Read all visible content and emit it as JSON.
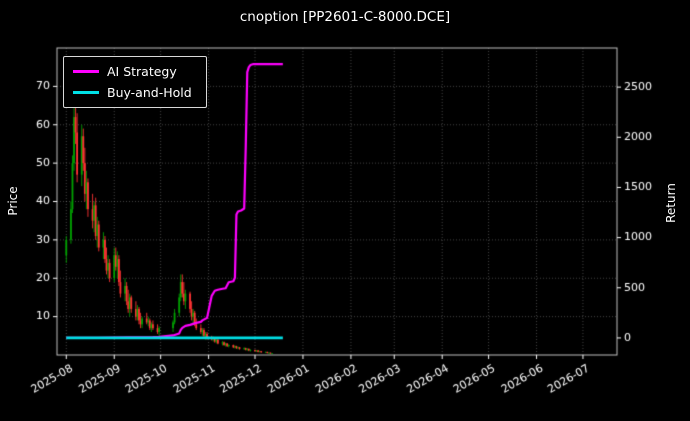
{
  "chart_data": {
    "type": "candlestick+line",
    "title": "cnoption [PP2601-C-8000.DCE]",
    "ylabel_left": "Price",
    "ylabel_right": "Return",
    "legend": [
      {
        "label": "AI Strategy",
        "color": "#ff00ff"
      },
      {
        "label": "Buy-and-Hold",
        "color": "#00e0e6"
      }
    ],
    "colors": {
      "background": "#000000",
      "text": "#ffffff",
      "grid": "rgba(255,255,255,0.35)",
      "spine": "#c0c0c0",
      "candle_up": "#00a000",
      "candle_down": "#ff3333",
      "ai_strategy": "#ff00ff",
      "buy_and_hold": "#00e0e6"
    },
    "x_ticks": [
      {
        "day": 0,
        "label": "2025-08"
      },
      {
        "day": 31,
        "label": "2025-09"
      },
      {
        "day": 61,
        "label": "2025-10"
      },
      {
        "day": 92,
        "label": "2025-11"
      },
      {
        "day": 122,
        "label": "2025-12"
      },
      {
        "day": 153,
        "label": "2026-01"
      },
      {
        "day": 184,
        "label": "2026-02"
      },
      {
        "day": 212,
        "label": "2026-03"
      },
      {
        "day": 243,
        "label": "2026-04"
      },
      {
        "day": 273,
        "label": "2026-05"
      },
      {
        "day": 304,
        "label": "2026-06"
      },
      {
        "day": 334,
        "label": "2026-07"
      }
    ],
    "y_ticks_left": [
      10,
      20,
      30,
      40,
      50,
      60,
      70
    ],
    "y_ticks_right": [
      0,
      500,
      1000,
      1500,
      2000,
      2500
    ],
    "xlim_days": [
      -6,
      356
    ],
    "ylim_price": [
      0,
      80
    ],
    "ylim_return": [
      -170,
      2890
    ],
    "candles": [
      [
        0,
        26,
        31,
        24,
        30
      ],
      [
        3,
        30,
        40,
        29,
        38
      ],
      [
        4,
        38,
        52,
        37,
        50
      ],
      [
        5,
        50,
        65,
        48,
        62
      ],
      [
        6,
        62,
        66,
        55,
        58
      ],
      [
        7,
        58,
        63,
        45,
        47
      ],
      [
        10,
        47,
        60,
        44,
        57
      ],
      [
        11,
        57,
        59,
        48,
        50
      ],
      [
        12,
        50,
        54,
        40,
        42
      ],
      [
        13,
        42,
        48,
        38,
        45
      ],
      [
        14,
        45,
        46,
        36,
        38
      ],
      [
        17,
        38,
        42,
        33,
        35
      ],
      [
        18,
        35,
        40,
        32,
        39
      ],
      [
        19,
        39,
        41,
        30,
        31
      ],
      [
        20,
        31,
        36,
        28,
        34
      ],
      [
        21,
        34,
        35,
        27,
        28
      ],
      [
        24,
        28,
        32,
        25,
        30
      ],
      [
        25,
        30,
        31,
        24,
        25
      ],
      [
        26,
        25,
        28,
        21,
        22
      ],
      [
        27,
        22,
        26,
        20,
        24
      ],
      [
        28,
        24,
        25,
        19,
        20
      ],
      [
        31,
        20,
        28,
        19,
        26
      ],
      [
        32,
        26,
        28,
        22,
        23
      ],
      [
        33,
        23,
        27,
        20,
        25
      ],
      [
        34,
        25,
        26,
        18,
        19
      ],
      [
        35,
        19,
        22,
        15,
        16
      ],
      [
        38,
        16,
        20,
        14,
        18
      ],
      [
        39,
        18,
        19,
        13,
        14
      ],
      [
        40,
        14,
        17,
        11,
        12
      ],
      [
        41,
        12,
        16,
        10,
        15
      ],
      [
        42,
        15,
        15.5,
        11,
        12
      ],
      [
        45,
        12,
        14,
        9,
        10
      ],
      [
        46,
        10,
        13,
        9,
        12
      ],
      [
        47,
        12,
        12.5,
        8,
        9
      ],
      [
        48,
        9,
        11,
        7,
        8
      ],
      [
        49,
        8,
        10,
        7,
        9.5
      ],
      [
        52,
        9.5,
        11,
        8,
        8.5
      ],
      [
        53,
        8.5,
        10,
        7.5,
        9
      ],
      [
        54,
        9,
        9.5,
        6.5,
        7
      ],
      [
        55,
        7,
        8.5,
        6,
        8
      ],
      [
        56,
        8,
        9,
        6.5,
        7
      ],
      [
        59,
        7,
        8,
        5.5,
        6
      ],
      [
        60,
        6,
        7.5,
        5,
        7
      ],
      [
        69,
        7,
        9,
        6,
        8.5
      ],
      [
        70,
        8.5,
        12,
        8,
        11
      ],
      [
        73,
        11,
        16,
        10,
        15
      ],
      [
        74,
        15,
        21,
        14,
        19
      ],
      [
        75,
        19,
        21,
        15,
        16
      ],
      [
        76,
        16,
        19,
        13,
        14
      ],
      [
        77,
        14,
        17,
        12,
        16
      ],
      [
        80,
        16,
        16.5,
        11,
        12
      ],
      [
        81,
        12,
        14,
        9,
        10
      ],
      [
        82,
        10,
        12,
        8,
        11
      ],
      [
        83,
        11,
        11.5,
        7.5,
        8
      ],
      [
        84,
        8,
        9.5,
        6.5,
        7
      ],
      [
        87,
        7,
        8,
        5.5,
        6
      ],
      [
        88,
        6,
        7,
        5,
        6.5
      ],
      [
        89,
        6.5,
        7,
        4.5,
        5
      ],
      [
        90,
        5,
        6,
        4,
        5.5
      ],
      [
        91,
        5.5,
        6,
        4,
        4.5
      ],
      [
        94,
        4.5,
        5,
        3.8,
        4
      ],
      [
        95,
        4,
        4.8,
        3.5,
        4.5
      ],
      [
        96,
        4.5,
        4.6,
        3.2,
        3.5
      ],
      [
        97,
        3.5,
        4.2,
        3,
        4
      ],
      [
        98,
        4,
        4.1,
        2.8,
        3
      ],
      [
        101,
        3,
        3.6,
        2.5,
        3.3
      ],
      [
        102,
        3.3,
        3.5,
        2.4,
        2.6
      ],
      [
        103,
        2.6,
        3.2,
        2.2,
        3
      ],
      [
        104,
        3,
        3.1,
        2.1,
        2.3
      ],
      [
        105,
        2.3,
        2.8,
        2,
        2.6
      ],
      [
        108,
        2.6,
        2.7,
        1.8,
        2
      ],
      [
        109,
        2,
        2.5,
        1.7,
        2.3
      ],
      [
        110,
        2.3,
        2.4,
        1.6,
        1.8
      ],
      [
        111,
        1.8,
        2.2,
        1.5,
        2
      ],
      [
        112,
        2,
        2.1,
        1.4,
        1.6
      ],
      [
        115,
        1.6,
        2,
        1.3,
        1.8
      ],
      [
        116,
        1.8,
        1.9,
        1.2,
        1.4
      ],
      [
        117,
        1.4,
        1.8,
        1.1,
        1.6
      ],
      [
        118,
        1.6,
        1.7,
        1,
        1.2
      ],
      [
        119,
        1.2,
        1.5,
        0.9,
        1.3
      ],
      [
        122,
        1.3,
        1.4,
        0.9,
        1
      ],
      [
        123,
        1,
        1.3,
        0.8,
        1.2
      ],
      [
        124,
        1.2,
        1.25,
        0.7,
        0.8
      ],
      [
        125,
        0.8,
        1.1,
        0.7,
        1
      ],
      [
        126,
        1,
        1.05,
        0.6,
        0.7
      ],
      [
        129,
        0.7,
        0.9,
        0.5,
        0.8
      ],
      [
        130,
        0.8,
        0.85,
        0.45,
        0.5
      ],
      [
        131,
        0.5,
        0.7,
        0.4,
        0.6
      ],
      [
        132,
        0.6,
        0.65,
        0.35,
        0.4
      ],
      [
        133,
        0.4,
        0.5,
        0.3,
        0.45
      ]
    ],
    "ai_strategy_points": [
      [
        0,
        0
      ],
      [
        20,
        2
      ],
      [
        40,
        5
      ],
      [
        56,
        8
      ],
      [
        60,
        12
      ],
      [
        69,
        25
      ],
      [
        73,
        45
      ],
      [
        74,
        80
      ],
      [
        75,
        100
      ],
      [
        77,
        120
      ],
      [
        80,
        130
      ],
      [
        84,
        150
      ],
      [
        87,
        160
      ],
      [
        88,
        175
      ],
      [
        91,
        200
      ],
      [
        94,
        420
      ],
      [
        96,
        470
      ],
      [
        98,
        480
      ],
      [
        101,
        490
      ],
      [
        103,
        495
      ],
      [
        105,
        555
      ],
      [
        108,
        565
      ],
      [
        109,
        600
      ],
      [
        110,
        1230
      ],
      [
        111,
        1260
      ],
      [
        113,
        1270
      ],
      [
        115,
        1290
      ],
      [
        116,
        1900
      ],
      [
        117,
        2650
      ],
      [
        118,
        2700
      ],
      [
        119,
        2720
      ],
      [
        121,
        2730
      ],
      [
        140,
        2730
      ]
    ],
    "buy_and_hold_points": [
      [
        0,
        0
      ],
      [
        140,
        0
      ]
    ]
  }
}
